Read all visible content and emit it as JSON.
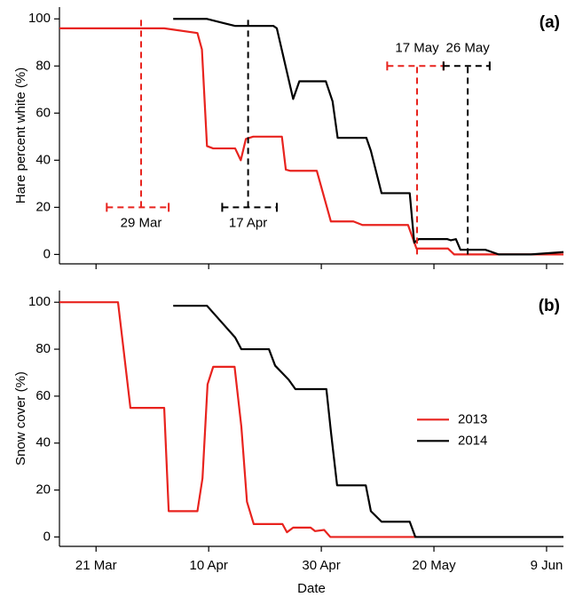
{
  "chart_data": [
    {
      "type": "line",
      "panel_label": "(a)",
      "ylabel": "Hare percent white (%)",
      "xlim": [
        73.5,
        163
      ],
      "ylim": [
        -4,
        105
      ],
      "yticks": [
        0,
        20,
        40,
        60,
        80,
        100
      ],
      "series": [
        {
          "name": "2013",
          "color": "#e8231e",
          "x": [
            73.5,
            92.1,
            98,
            98.8,
            99.7,
            100.8,
            104.7,
            105.7,
            106.6,
            107.9,
            113,
            113.7,
            114.5,
            119.2,
            121.7,
            125.7,
            127.3,
            135.4,
            136.9,
            142.5,
            143.6,
            151.2,
            163
          ],
          "values": [
            96,
            96,
            94,
            87,
            46,
            45,
            45,
            40,
            49,
            50,
            50,
            36,
            35.5,
            35.5,
            14,
            14,
            12.5,
            12.5,
            2.5,
            2.5,
            0,
            0,
            0
          ]
        },
        {
          "name": "2014",
          "color": "#000000",
          "x": [
            93.7,
            99.7,
            104.7,
            111.5,
            112.1,
            115,
            116.1,
            120.8,
            122,
            122.9,
            128,
            128.8,
            130.7,
            135.7,
            136.5,
            137.3,
            142.4,
            143,
            143.9,
            144.7,
            149.1,
            151.5,
            157.2,
            163
          ],
          "values": [
            100,
            100,
            97,
            97,
            96,
            66,
            73.5,
            73.5,
            65,
            49.5,
            49.5,
            44,
            26,
            26,
            5,
            6.5,
            6.5,
            6,
            6.5,
            2,
            2,
            0,
            0,
            1
          ]
        }
      ],
      "annotations": [
        {
          "label": "29 Mar",
          "x": 88,
          "xerr": [
            81.9,
            92.9
          ],
          "y": 20,
          "yrange": [
            20,
            100
          ],
          "color": "#e8231e"
        },
        {
          "label": "17 Apr",
          "x": 107,
          "xerr": [
            102.4,
            112.1
          ],
          "y": 20,
          "yrange": [
            20,
            100
          ],
          "color": "#000000"
        },
        {
          "label": "17 May",
          "x": 137,
          "xerr": [
            131.7,
            141.7
          ],
          "y": 80,
          "yrange": [
            0,
            80
          ],
          "color": "#e8231e"
        },
        {
          "label": "26 May",
          "x": 146,
          "xerr": [
            141.7,
            149.9
          ],
          "y": 80,
          "yrange": [
            0,
            80
          ],
          "color": "#000000"
        }
      ]
    },
    {
      "type": "line",
      "panel_label": "(b)",
      "ylabel": "Snow cover (%)",
      "xlabel": "Date",
      "xlim": [
        73.5,
        163
      ],
      "ylim": [
        -4,
        105
      ],
      "yticks": [
        0,
        20,
        40,
        60,
        80,
        100
      ],
      "xticks": [
        {
          "value": 80,
          "label": "21 Mar"
        },
        {
          "value": 100,
          "label": "10 Apr"
        },
        {
          "value": 120,
          "label": "30 Apr"
        },
        {
          "value": 140,
          "label": "20 May"
        },
        {
          "value": 160,
          "label": "9 Jun"
        }
      ],
      "legend": "right",
      "series": [
        {
          "name": "2013",
          "color": "#e8231e",
          "x": [
            73.5,
            83.9,
            86.1,
            92.1,
            92.9,
            98,
            98.9,
            99.8,
            100.8,
            104.6,
            105.8,
            106.8,
            108,
            113.1,
            113.9,
            115,
            118.1,
            118.9,
            120.5,
            121.6,
            137
          ],
          "values": [
            100,
            100,
            55,
            55,
            11,
            11,
            25,
            65,
            72.5,
            72.5,
            47,
            15,
            5.5,
            5.5,
            2,
            4,
            4,
            2.5,
            3,
            0,
            0
          ]
        },
        {
          "name": "2014",
          "color": "#000000",
          "x": [
            93.7,
            99.7,
            104.7,
            105.8,
            110.7,
            111.8,
            114.2,
            115.4,
            120.9,
            121.7,
            122.8,
            127.9,
            128.8,
            130.7,
            135.7,
            136.7,
            163
          ],
          "values": [
            98.5,
            98.5,
            85,
            80,
            80,
            73,
            67,
            63,
            63,
            45,
            22,
            22,
            11,
            6.5,
            6.5,
            0,
            0
          ]
        }
      ]
    }
  ]
}
